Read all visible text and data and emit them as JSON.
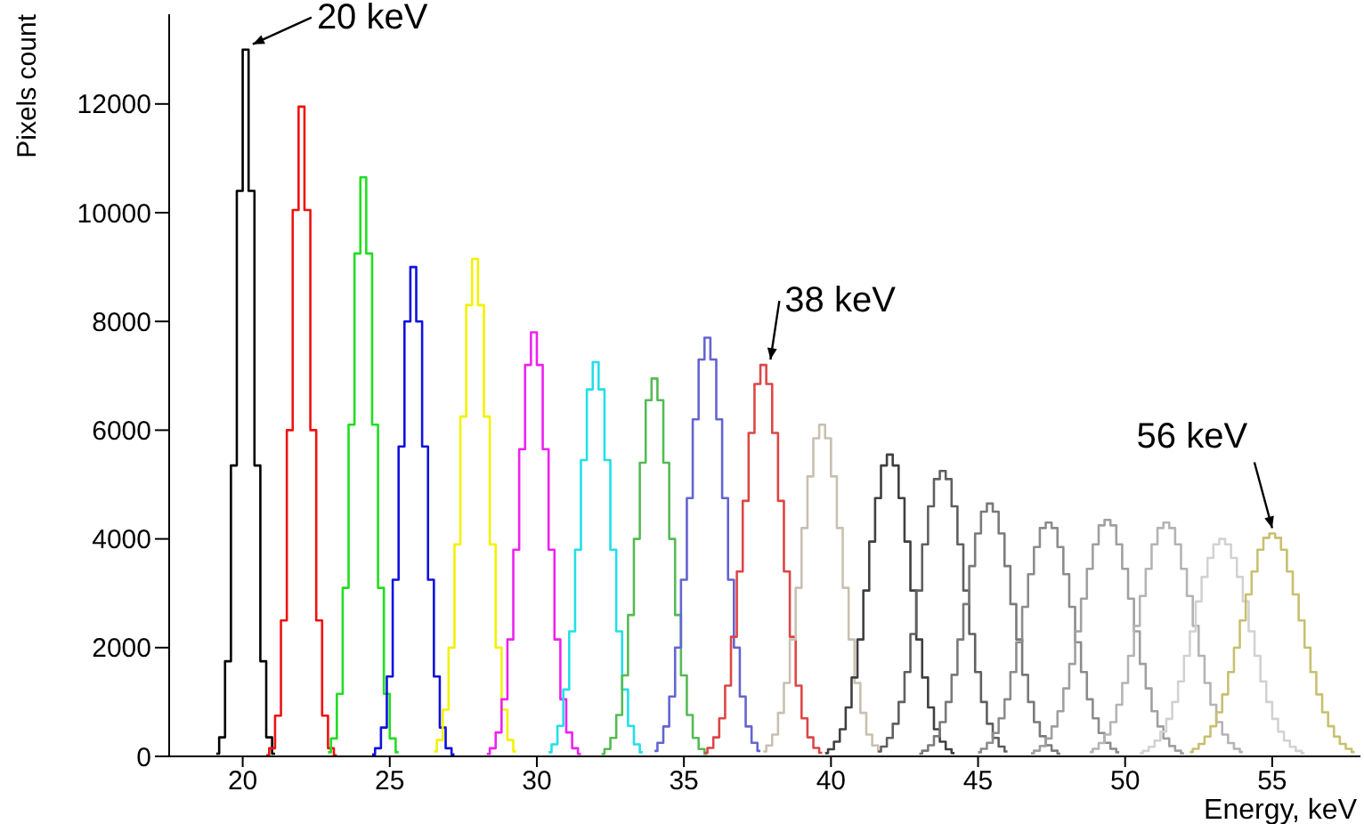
{
  "chart_data": {
    "type": "step",
    "xlabel": "Energy, keV",
    "ylabel": "Pixels count",
    "xlim": [
      17.5,
      58
    ],
    "ylim": [
      0,
      13650
    ],
    "xticks": [
      20,
      25,
      30,
      35,
      40,
      45,
      50,
      55
    ],
    "yticks": [
      0,
      2000,
      4000,
      6000,
      8000,
      10000,
      12000
    ],
    "grid": false,
    "legend": false,
    "annotations": [
      {
        "text": "20 keV",
        "x": 20.1,
        "y": 13000
      },
      {
        "text": "38 keV",
        "x": 37.7,
        "y": 7200
      },
      {
        "text": "56 keV",
        "x": 55.0,
        "y": 4100
      }
    ],
    "series": [
      {
        "color": "#000000",
        "x": [
          19.1,
          19.3,
          19.5,
          19.7,
          19.9,
          20.1,
          20.3,
          20.5,
          20.7,
          20.9,
          21.1
        ],
        "values": [
          50,
          350,
          1750,
          5350,
          10400,
          13000,
          10400,
          5350,
          1750,
          350,
          50
        ]
      },
      {
        "color": "#ee1111",
        "x": [
          20.8,
          21.0,
          21.2,
          21.4,
          21.6,
          21.8,
          22.0,
          22.2,
          22.4,
          22.6,
          22.8,
          23.0,
          23.2
        ],
        "values": [
          20,
          150,
          750,
          2500,
          6000,
          10050,
          11950,
          10050,
          6000,
          2500,
          750,
          150,
          20
        ]
      },
      {
        "color": "#22dd22",
        "x": [
          22.9,
          23.1,
          23.3,
          23.5,
          23.7,
          23.9,
          24.1,
          24.3,
          24.5,
          24.7,
          24.9,
          25.1,
          25.3
        ],
        "values": [
          75,
          330,
          1150,
          3100,
          6100,
          9250,
          10650,
          9250,
          6100,
          3100,
          1150,
          330,
          75
        ]
      },
      {
        "color": "#1111dd",
        "x": [
          24.4,
          24.6,
          24.8,
          25.0,
          25.2,
          25.4,
          25.6,
          25.8,
          26.0,
          26.2,
          26.4,
          26.6,
          26.8,
          27.0,
          27.2
        ],
        "values": [
          35,
          150,
          530,
          1470,
          3250,
          5700,
          8000,
          9000,
          8000,
          5700,
          3250,
          1470,
          530,
          150,
          35
        ]
      },
      {
        "color": "#f2f200",
        "x": [
          26.5,
          26.7,
          26.9,
          27.1,
          27.3,
          27.5,
          27.7,
          27.9,
          28.1,
          28.3,
          28.5,
          28.7,
          28.9,
          29.1,
          29.3
        ],
        "values": [
          90,
          300,
          860,
          2000,
          3900,
          6250,
          8300,
          9150,
          8300,
          6250,
          3900,
          2000,
          860,
          300,
          90
        ]
      },
      {
        "color": "#ee22ee",
        "x": [
          28.3,
          28.5,
          28.7,
          28.9,
          29.1,
          29.3,
          29.5,
          29.7,
          29.9,
          30.1,
          30.3,
          30.5,
          30.7,
          30.9,
          31.1,
          31.3,
          31.5
        ],
        "values": [
          45,
          150,
          440,
          1050,
          2150,
          3800,
          5650,
          7200,
          7800,
          7200,
          5650,
          3800,
          2150,
          1050,
          440,
          150,
          45
        ]
      },
      {
        "color": "#22e0e8",
        "x": [
          30.4,
          30.6,
          30.8,
          31.0,
          31.2,
          31.4,
          31.6,
          31.8,
          32.0,
          32.2,
          32.4,
          32.6,
          32.8,
          33.0,
          33.2,
          33.4,
          33.6
        ],
        "values": [
          75,
          220,
          560,
          1230,
          2300,
          3800,
          5450,
          6750,
          7250,
          6750,
          5450,
          3800,
          2300,
          1230,
          560,
          220,
          75
        ]
      },
      {
        "color": "#55bb55",
        "x": [
          32.2,
          32.4,
          32.6,
          32.8,
          33.0,
          33.2,
          33.4,
          33.6,
          33.8,
          34.0,
          34.2,
          34.4,
          34.6,
          34.8,
          35.0,
          35.2,
          35.4,
          35.6,
          35.8
        ],
        "values": [
          45,
          135,
          340,
          760,
          1490,
          2600,
          4000,
          5400,
          6550,
          6950,
          6550,
          5400,
          4000,
          2600,
          1490,
          760,
          340,
          135,
          45
        ]
      },
      {
        "color": "#6464d2",
        "x": [
          34.0,
          34.2,
          34.4,
          34.6,
          34.8,
          35.0,
          35.2,
          35.4,
          35.6,
          35.8,
          36.0,
          36.2,
          36.4,
          36.6,
          36.8,
          37.0,
          37.2,
          37.4,
          37.6
        ],
        "values": [
          100,
          250,
          550,
          1100,
          2000,
          3250,
          4750,
          6200,
          7300,
          7700,
          7300,
          6200,
          4750,
          3250,
          2000,
          1100,
          550,
          250,
          100
        ]
      },
      {
        "color": "#dd4646",
        "x": [
          35.7,
          35.9,
          36.1,
          36.3,
          36.5,
          36.7,
          36.9,
          37.1,
          37.3,
          37.5,
          37.7,
          37.9,
          38.1,
          38.3,
          38.5,
          38.7,
          38.9,
          39.1,
          39.3,
          39.5,
          39.7
        ],
        "values": [
          65,
          155,
          350,
          700,
          1300,
          2200,
          3400,
          4700,
          5950,
          6850,
          7200,
          6850,
          5950,
          4700,
          3400,
          2200,
          1300,
          700,
          350,
          155,
          65
        ]
      },
      {
        "color": "#c8c0b0",
        "x": [
          37.7,
          37.9,
          38.1,
          38.3,
          38.5,
          38.7,
          38.9,
          39.1,
          39.3,
          39.5,
          39.7,
          39.9,
          40.1,
          40.3,
          40.5,
          40.7,
          40.9,
          41.1,
          41.3,
          41.5,
          41.7
        ],
        "values": [
          90,
          200,
          400,
          800,
          1350,
          2150,
          3100,
          4200,
          5150,
          5850,
          6100,
          5850,
          5150,
          4200,
          3100,
          2150,
          1350,
          800,
          400,
          200,
          90
        ]
      },
      {
        "color": "#404040",
        "x": [
          39.8,
          40.0,
          40.2,
          40.4,
          40.6,
          40.8,
          41.0,
          41.2,
          41.4,
          41.6,
          41.8,
          42.0,
          42.2,
          42.4,
          42.6,
          42.8,
          43.0,
          43.2,
          43.4,
          43.6,
          43.8,
          44.0,
          44.2
        ],
        "values": [
          60,
          130,
          270,
          500,
          900,
          1450,
          2150,
          3050,
          3950,
          4750,
          5350,
          5550,
          5350,
          4750,
          3950,
          3050,
          2150,
          1450,
          900,
          500,
          270,
          130,
          60
        ]
      },
      {
        "color": "#606060",
        "x": [
          41.6,
          41.8,
          42.0,
          42.2,
          42.4,
          42.6,
          42.8,
          43.0,
          43.2,
          43.4,
          43.6,
          43.8,
          44.0,
          44.2,
          44.4,
          44.6,
          44.8,
          45.0,
          45.2,
          45.4,
          45.6,
          45.8,
          46.0
        ],
        "values": [
          90,
          180,
          340,
          600,
          1000,
          1550,
          2250,
          3050,
          3900,
          4600,
          5100,
          5250,
          5100,
          4600,
          3900,
          3050,
          2250,
          1550,
          1000,
          600,
          340,
          180,
          90
        ]
      },
      {
        "color": "#7a7a7a",
        "x": [
          43.0,
          43.2,
          43.4,
          43.6,
          43.8,
          44.0,
          44.2,
          44.4,
          44.6,
          44.8,
          45.0,
          45.2,
          45.4,
          45.6,
          45.8,
          46.0,
          46.2,
          46.4,
          46.6,
          46.8,
          47.0,
          47.2,
          47.4,
          47.6,
          47.8
        ],
        "values": [
          50,
          105,
          205,
          370,
          630,
          1000,
          1500,
          2150,
          2800,
          3500,
          4100,
          4500,
          4650,
          4500,
          4100,
          3500,
          2800,
          2150,
          1500,
          1000,
          630,
          370,
          205,
          105,
          50
        ]
      },
      {
        "color": "#8c8c8c",
        "x": [
          45.0,
          45.2,
          45.4,
          45.6,
          45.8,
          46.0,
          46.2,
          46.4,
          46.6,
          46.8,
          47.0,
          47.2,
          47.4,
          47.6,
          47.8,
          48.0,
          48.2,
          48.4,
          48.6,
          48.8,
          49.0,
          49.2,
          49.4,
          49.6,
          49.8
        ],
        "values": [
          75,
          140,
          250,
          430,
          700,
          1050,
          1550,
          2100,
          2750,
          3350,
          3850,
          4200,
          4300,
          4200,
          3850,
          3350,
          2750,
          2100,
          1550,
          1050,
          700,
          430,
          250,
          140,
          75
        ]
      },
      {
        "color": "#a0a0a0",
        "x": [
          46.8,
          47.0,
          47.2,
          47.4,
          47.6,
          47.8,
          48.0,
          48.2,
          48.4,
          48.6,
          48.8,
          49.0,
          49.2,
          49.4,
          49.6,
          49.8,
          50.0,
          50.2,
          50.4,
          50.6,
          50.8,
          51.0,
          51.2,
          51.4,
          51.6,
          51.8,
          52.0
        ],
        "values": [
          55,
          105,
          190,
          330,
          550,
          830,
          1250,
          1700,
          2300,
          2900,
          3450,
          3900,
          4250,
          4350,
          4250,
          3900,
          3450,
          2900,
          2300,
          1700,
          1250,
          830,
          550,
          330,
          190,
          105,
          55
        ]
      },
      {
        "color": "#b4b4b4",
        "x": [
          48.8,
          49.0,
          49.2,
          49.4,
          49.6,
          49.8,
          50.0,
          50.2,
          50.4,
          50.6,
          50.8,
          51.0,
          51.2,
          51.4,
          51.6,
          51.8,
          52.0,
          52.2,
          52.4,
          52.6,
          52.8,
          53.0,
          53.2,
          53.4,
          53.6,
          53.8,
          54.0
        ],
        "values": [
          80,
          140,
          245,
          400,
          630,
          950,
          1350,
          1850,
          2400,
          2950,
          3450,
          3900,
          4200,
          4300,
          4200,
          3900,
          3450,
          2950,
          2400,
          1850,
          1350,
          950,
          630,
          400,
          245,
          140,
          80
        ]
      },
      {
        "color": "#d2d2d2",
        "x": [
          50.5,
          50.7,
          50.9,
          51.1,
          51.3,
          51.5,
          51.7,
          51.9,
          52.1,
          52.3,
          52.5,
          52.7,
          52.9,
          53.1,
          53.3,
          53.5,
          53.7,
          53.9,
          54.1,
          54.3,
          54.5,
          54.7,
          54.9,
          55.1,
          55.3,
          55.5,
          55.7,
          55.9,
          56.1
        ],
        "values": [
          55,
          100,
          175,
          290,
          455,
          690,
          1000,
          1380,
          1850,
          2300,
          2850,
          3300,
          3650,
          3900,
          4000,
          3900,
          3650,
          3300,
          2850,
          2300,
          1850,
          1380,
          1000,
          690,
          455,
          290,
          175,
          100,
          55
        ]
      },
      {
        "color": "#c8c070",
        "x": [
          52.2,
          52.4,
          52.6,
          52.8,
          53.0,
          53.2,
          53.4,
          53.6,
          53.8,
          54.0,
          54.2,
          54.4,
          54.6,
          54.8,
          55.0,
          55.2,
          55.4,
          55.6,
          55.8,
          56.0,
          56.2,
          56.4,
          56.6,
          56.8,
          57.0,
          57.2,
          57.4,
          57.6,
          57.8
        ],
        "values": [
          80,
          140,
          230,
          365,
          555,
          810,
          1140,
          1550,
          2000,
          2500,
          2980,
          3400,
          3800,
          4020,
          4100,
          4020,
          3800,
          3400,
          2980,
          2500,
          2000,
          1550,
          1140,
          810,
          555,
          365,
          230,
          140,
          80
        ]
      }
    ]
  }
}
